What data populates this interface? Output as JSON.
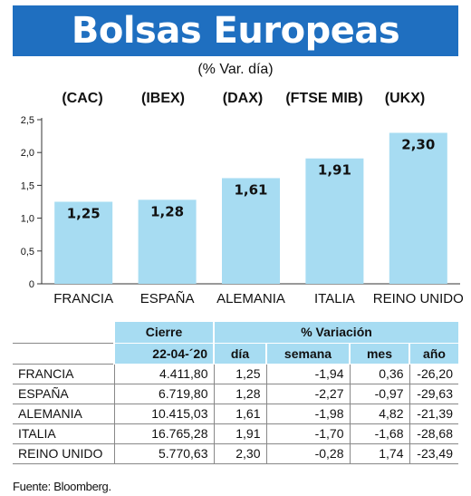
{
  "title": "Bolsas Europeas",
  "subtitle": "(% Var. día)",
  "chart_data": {
    "type": "bar",
    "index_codes": [
      "(CAC)",
      "(IBEX)",
      "(DAX)",
      "(FTSE MIB)",
      "(UKX)"
    ],
    "categories": [
      "FRANCIA",
      "ESPAÑA",
      "ALEMANIA",
      "ITALIA",
      "REINO UNIDO"
    ],
    "values": [
      1.25,
      1.28,
      1.61,
      1.91,
      2.3
    ],
    "value_labels": [
      "1,25",
      "1,28",
      "1,61",
      "1,91",
      "2,30"
    ],
    "yticks": [
      0,
      0.5,
      1.0,
      1.5,
      2.0,
      2.5
    ],
    "ytick_labels": [
      "0",
      "0,5",
      "1,0",
      "1,5",
      "2,0",
      "2,5"
    ],
    "ylim": [
      0,
      2.5
    ],
    "bar_color": "#a7dcf2",
    "grid": false
  },
  "table": {
    "header_top": {
      "cierre": "Cierre",
      "variacion": "% Variación"
    },
    "header_sub": {
      "date": "22-04-´20",
      "dia": "día",
      "semana": "semana",
      "mes": "mes",
      "anio": "año"
    },
    "rows": [
      {
        "name": "FRANCIA",
        "cierre": "4.411,80",
        "dia": "1,25",
        "semana": "-1,94",
        "mes": "0,36",
        "anio": "-26,20"
      },
      {
        "name": "ESPAÑA",
        "cierre": "6.719,80",
        "dia": "1,28",
        "semana": "-2,27",
        "mes": "-0,97",
        "anio": "-29,63"
      },
      {
        "name": "ALEMANIA",
        "cierre": "10.415,03",
        "dia": "1,61",
        "semana": "-1,98",
        "mes": "4,82",
        "anio": "-21,39"
      },
      {
        "name": "ITALIA",
        "cierre": "16.765,28",
        "dia": "1,91",
        "semana": "-1,70",
        "mes": "-1,68",
        "anio": "-28,68"
      },
      {
        "name": "REINO UNIDO",
        "cierre": "5.770,63",
        "dia": "2,30",
        "semana": "-0,28",
        "mes": "1,74",
        "anio": "-23,49"
      }
    ]
  },
  "source": "Fuente: Bloomberg.",
  "colors": {
    "banner": "#1f6fc0",
    "header_fill": "#a7dcf2"
  }
}
